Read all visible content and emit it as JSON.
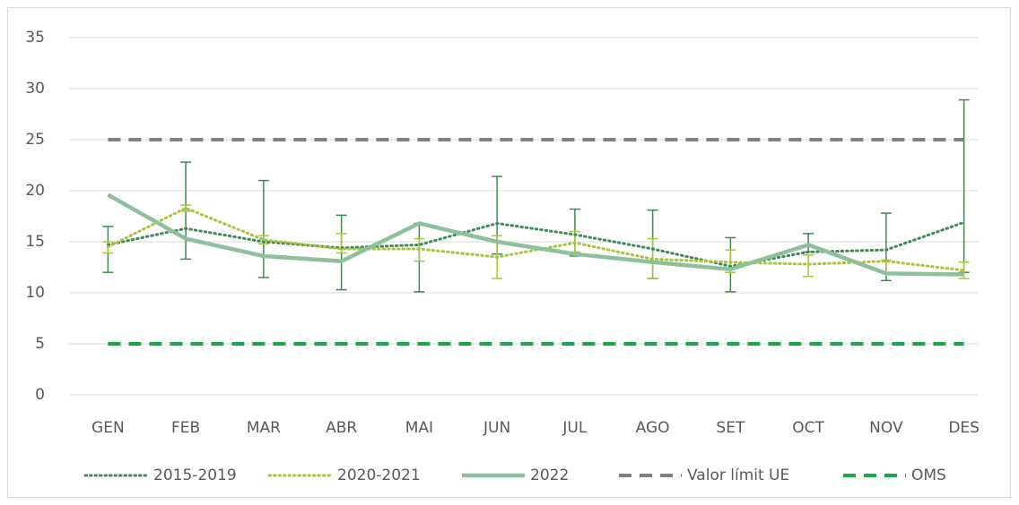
{
  "chart_data": {
    "type": "line",
    "categories": [
      "GEN",
      "FEB",
      "MAR",
      "ABR",
      "MAI",
      "JUN",
      "JUL",
      "AGO",
      "SET",
      "OCT",
      "NOV",
      "DES"
    ],
    "ylim": [
      0,
      35
    ],
    "yticks": [
      0,
      5,
      10,
      15,
      20,
      25,
      30,
      35
    ],
    "grid": true,
    "legend": "bottom",
    "series": [
      {
        "name": "2015-2019",
        "color": "#3d8a55",
        "style": "dotted",
        "values": [
          14.7,
          16.3,
          15.0,
          14.4,
          14.7,
          16.8,
          15.7,
          14.3,
          12.6,
          14.0,
          14.2,
          16.9
        ],
        "error_low": [
          12.0,
          13.3,
          11.5,
          10.3,
          10.1,
          13.8,
          13.6,
          11.4,
          10.1,
          14.0,
          11.2,
          12.0
        ],
        "error_high": [
          16.5,
          22.8,
          21.0,
          17.6,
          16.8,
          21.4,
          18.2,
          18.1,
          15.4,
          15.8,
          17.8,
          28.9
        ]
      },
      {
        "name": "2020-2021",
        "color": "#a8c43c",
        "style": "dotted",
        "values": [
          14.5,
          18.3,
          15.2,
          14.3,
          14.3,
          13.5,
          14.9,
          13.3,
          13.0,
          12.8,
          13.1,
          12.2
        ],
        "error_low": [
          13.9,
          18.0,
          14.8,
          13.9,
          13.1,
          11.4,
          14.0,
          11.4,
          12.0,
          11.6,
          12.0,
          11.4
        ],
        "error_high": [
          15.0,
          18.6,
          15.6,
          15.8,
          15.3,
          15.6,
          16.0,
          15.3,
          14.2,
          13.7,
          13.2,
          13.0
        ]
      },
      {
        "name": "2022",
        "color": "#8fc09c",
        "style": "solid",
        "values": [
          19.6,
          15.3,
          13.6,
          13.1,
          16.8,
          15.0,
          13.8,
          13.0,
          12.3,
          14.7,
          11.9,
          11.8
        ]
      },
      {
        "name": "Valor límit UE",
        "color": "#808080",
        "style": "dashed",
        "values": [
          25,
          25,
          25,
          25,
          25,
          25,
          25,
          25,
          25,
          25,
          25,
          25
        ]
      },
      {
        "name": "OMS",
        "color": "#1aa84a",
        "style": "dashed",
        "values": [
          5,
          5,
          5,
          5,
          5,
          5,
          5,
          5,
          5,
          5,
          5,
          5
        ]
      }
    ]
  }
}
